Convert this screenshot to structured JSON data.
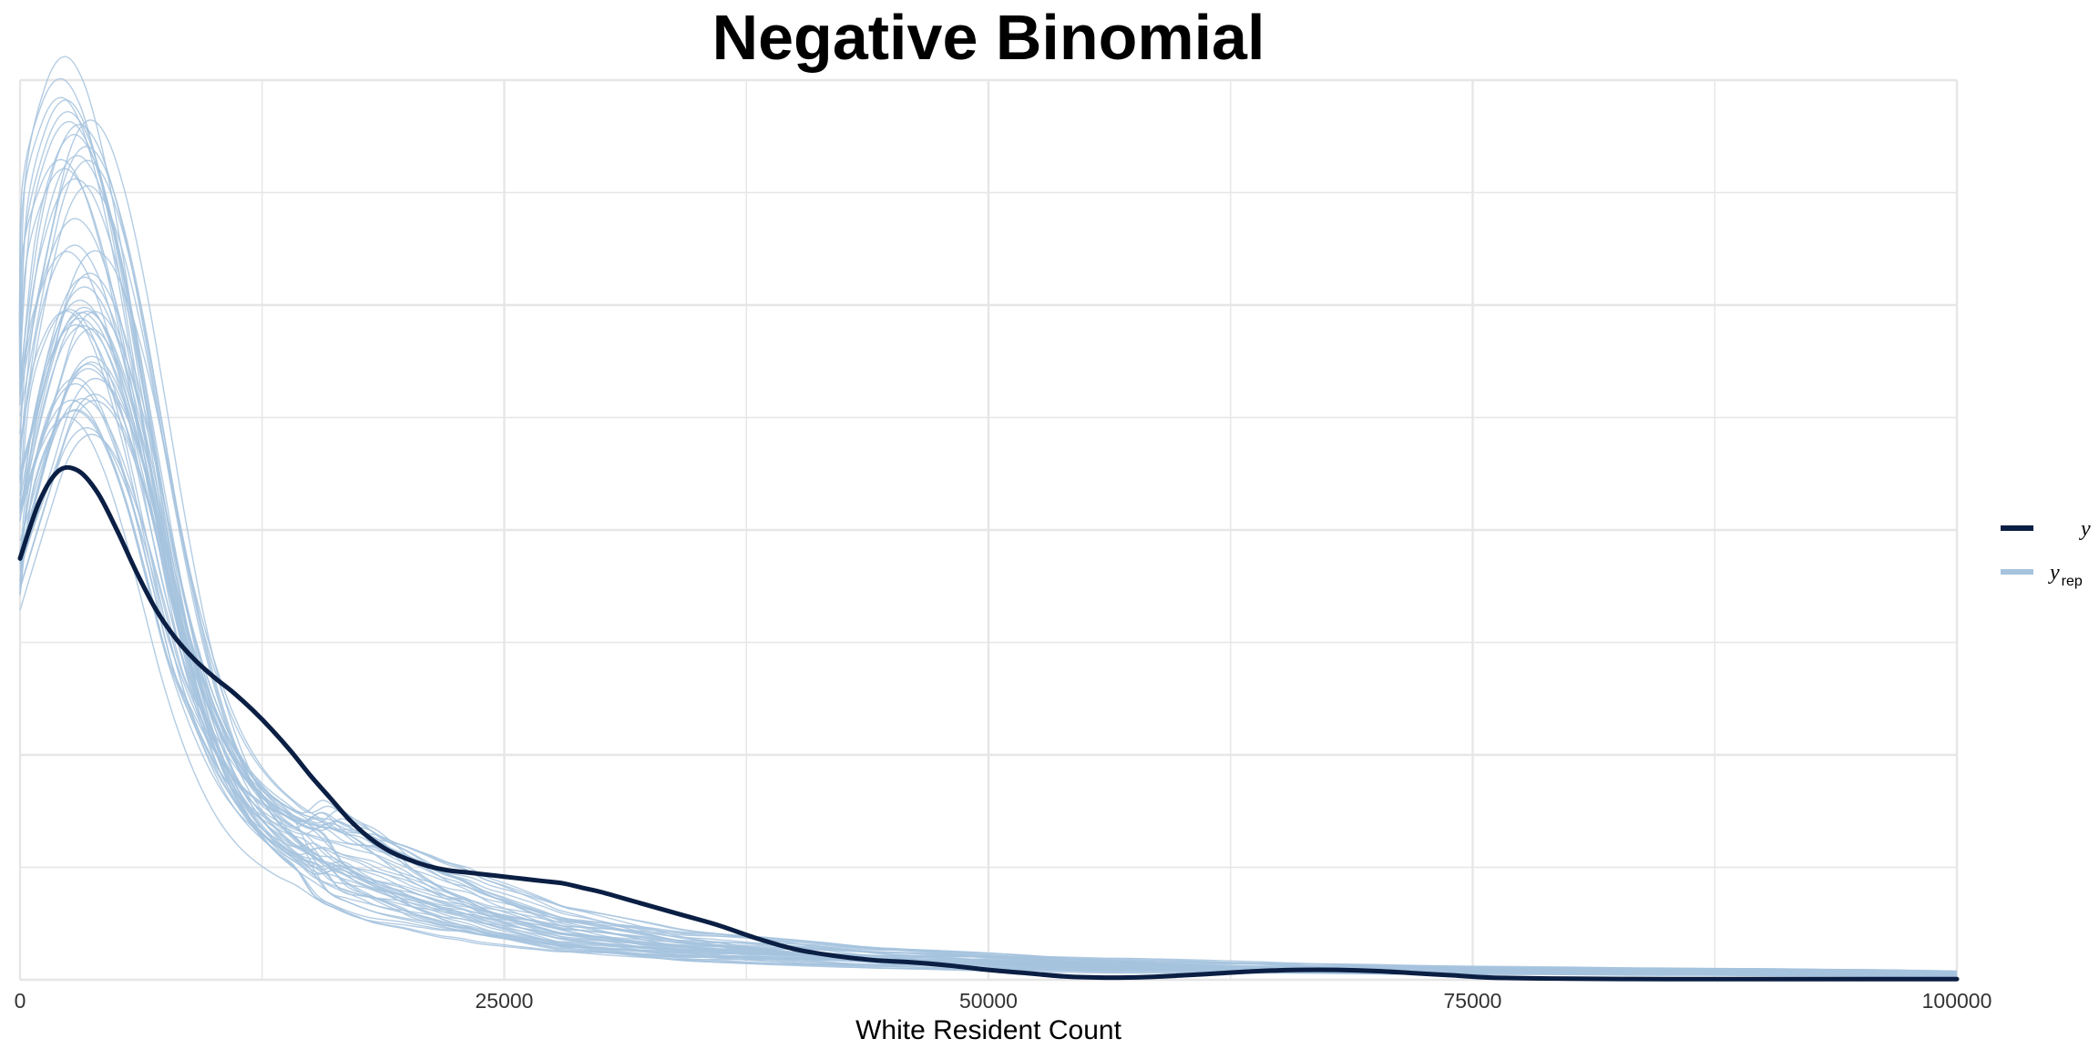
{
  "chart_data": {
    "type": "line",
    "title": "Negative Binomial",
    "xlabel": "White Resident Count",
    "ylabel": "",
    "xlim": [
      0,
      100000
    ],
    "ylim": [
      0,
      4.1
    ],
    "x_ticks": [
      0,
      25000,
      50000,
      75000,
      100000
    ],
    "x_tick_labels": [
      "0",
      "25000",
      "50000",
      "75000",
      "100000"
    ],
    "y_ticks_labeled": false,
    "grid": true,
    "legend_position": "right",
    "legend": [
      {
        "key": "y",
        "label": "y",
        "subscript": "",
        "color": "#0b1f44"
      },
      {
        "key": "yrep",
        "label": "y",
        "subscript": "rep",
        "color": "#a6c3de"
      }
    ],
    "colors": {
      "y": "#0b1f44",
      "yrep": "#a6c3de",
      "grid": "#e6e6e6"
    },
    "series": [
      {
        "name": "y",
        "x": [
          0,
          1000,
          2000,
          3000,
          4000,
          5000,
          6000,
          7000,
          8000,
          9000,
          10000,
          11000,
          12000,
          13000,
          14000,
          15000,
          16000,
          17000,
          18000,
          19000,
          20000,
          21000,
          22000,
          23000,
          24000,
          25000,
          26000,
          27000,
          28000,
          29000,
          30000,
          32000,
          34000,
          36000,
          38000,
          40000,
          42000,
          44000,
          46000,
          48000,
          50000,
          52000,
          54000,
          56000,
          58000,
          60000,
          62000,
          64000,
          66000,
          68000,
          70000,
          72000,
          74000,
          76000,
          80000,
          85000,
          90000,
          95000,
          100000
        ],
        "y": [
          1.92,
          2.18,
          2.32,
          2.32,
          2.22,
          2.05,
          1.86,
          1.69,
          1.56,
          1.46,
          1.38,
          1.31,
          1.23,
          1.14,
          1.04,
          0.93,
          0.83,
          0.73,
          0.65,
          0.59,
          0.55,
          0.52,
          0.5,
          0.49,
          0.48,
          0.47,
          0.46,
          0.45,
          0.44,
          0.42,
          0.4,
          0.35,
          0.3,
          0.25,
          0.19,
          0.14,
          0.11,
          0.09,
          0.08,
          0.065,
          0.045,
          0.03,
          0.015,
          0.01,
          0.012,
          0.02,
          0.03,
          0.04,
          0.045,
          0.045,
          0.04,
          0.03,
          0.02,
          0.01,
          0.005,
          0.003,
          0.003,
          0.003,
          0.003
        ]
      },
      {
        "name": "yrep",
        "x": [
          0,
          1000,
          2000,
          3000,
          4000,
          5000,
          6000,
          7000,
          8000,
          9000,
          10000,
          11000,
          12000,
          13000,
          14000,
          15000,
          16000,
          17000,
          18000,
          19000,
          20000,
          21000,
          22000,
          23000,
          24000,
          25000,
          26000,
          27000,
          28000,
          29000,
          30000,
          32000,
          34000,
          36000,
          38000,
          40000,
          42000,
          44000,
          46000,
          48000,
          50000,
          52000,
          54000,
          56000,
          58000,
          60000,
          62000,
          64000,
          66000,
          68000,
          70000,
          72000,
          74000,
          76000,
          80000,
          85000,
          90000,
          95000,
          100000
        ],
        "y": [
          2.5,
          3.1,
          3.45,
          3.58,
          3.5,
          3.25,
          2.88,
          2.42,
          1.95,
          1.55,
          1.24,
          1.01,
          0.85,
          0.74,
          0.66,
          0.6,
          0.55,
          0.5,
          0.46,
          0.42,
          0.39,
          0.36,
          0.33,
          0.31,
          0.28,
          0.26,
          0.24,
          0.22,
          0.2,
          0.19,
          0.18,
          0.16,
          0.14,
          0.13,
          0.12,
          0.11,
          0.1,
          0.09,
          0.085,
          0.08,
          0.075,
          0.07,
          0.065,
          0.06,
          0.058,
          0.055,
          0.052,
          0.05,
          0.048,
          0.046,
          0.044,
          0.042,
          0.04,
          0.038,
          0.035,
          0.032,
          0.03,
          0.028,
          0.025
        ]
      }
    ]
  }
}
